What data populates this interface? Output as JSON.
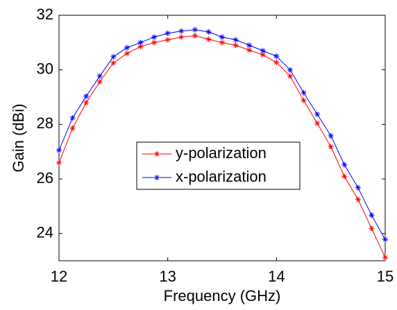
{
  "chart_data": {
    "type": "line",
    "x_label": "Frequency (GHz)",
    "y_label": "Gain (dBi)",
    "x": [
      12,
      12.125,
      12.25,
      12.375,
      12.5,
      12.625,
      12.75,
      12.875,
      13,
      13.125,
      13.25,
      13.375,
      13.5,
      13.625,
      13.75,
      13.875,
      14,
      14.125,
      14.25,
      14.375,
      14.5,
      14.625,
      14.75,
      14.875,
      15
    ],
    "series": [
      {
        "name": "y-polarization",
        "color": "#ff0000",
        "values": [
          26.59,
          27.86,
          28.8,
          29.56,
          30.25,
          30.6,
          30.85,
          31.0,
          31.1,
          31.2,
          31.25,
          31.12,
          31.0,
          30.9,
          30.72,
          30.55,
          30.27,
          29.77,
          28.88,
          28.04,
          27.18,
          26.09,
          25.25,
          24.18,
          23.12
        ]
      },
      {
        "name": "x-polarization",
        "color": "#0000ff",
        "values": [
          27.05,
          28.24,
          29.03,
          29.77,
          30.48,
          30.81,
          31.0,
          31.2,
          31.34,
          31.42,
          31.47,
          31.39,
          31.2,
          31.1,
          30.9,
          30.7,
          30.5,
          30.0,
          29.16,
          28.37,
          27.58,
          26.52,
          25.68,
          24.67,
          23.78
        ]
      }
    ],
    "xlim": [
      12,
      15
    ],
    "xticks": [
      12,
      13,
      14,
      15
    ],
    "ylim": [
      23,
      32
    ],
    "yticks": [
      24,
      26,
      28,
      30,
      32
    ],
    "grid": false,
    "legend": "center",
    "marker": "asterisk"
  }
}
